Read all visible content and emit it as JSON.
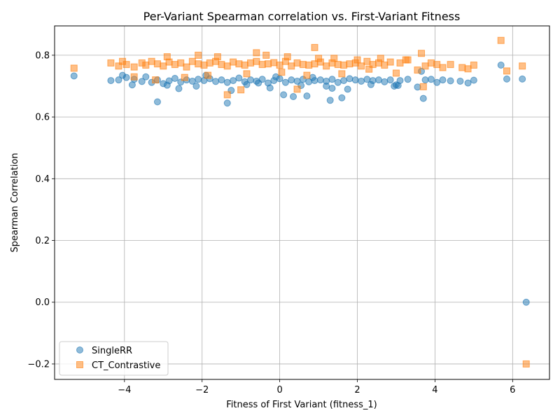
{
  "chart_data": {
    "type": "scatter",
    "title": "Per-Variant Spearman correlation vs. First-Variant Fitness",
    "xlabel": "Fitness of First Variant (fitness_1)",
    "ylabel": "Spearman Correlation",
    "xlim": [
      -5.8,
      6.95
    ],
    "ylim": [
      -0.25,
      0.895
    ],
    "xticks": [
      -4,
      -2,
      0,
      2,
      4,
      6
    ],
    "xtick_labels": [
      "−4",
      "−2",
      "0",
      "2",
      "4",
      "6"
    ],
    "yticks": [
      -0.2,
      0.0,
      0.2,
      0.4,
      0.6,
      0.8
    ],
    "ytick_labels": [
      "−0.2",
      "0.0",
      "0.2",
      "0.4",
      "0.6",
      "0.8"
    ],
    "grid": true,
    "legend_position": "lower-left",
    "colors": {
      "SingleRR": "#1f77b4",
      "CT_Contrastive": "#ff7f0e"
    },
    "series": [
      {
        "name": "SingleRR",
        "marker": "circle",
        "x": [
          -5.3,
          -4.35,
          -4.15,
          -4.05,
          -3.95,
          -3.75,
          -3.55,
          -3.45,
          -3.3,
          -3.15,
          -3.0,
          -2.85,
          -2.7,
          -2.55,
          -2.4,
          -2.25,
          -2.1,
          -1.95,
          -1.8,
          -1.65,
          -1.5,
          -1.35,
          -1.2,
          -1.05,
          -0.9,
          -0.75,
          -0.6,
          -0.45,
          -0.3,
          -0.15,
          0.0,
          0.15,
          0.3,
          0.45,
          0.6,
          0.75,
          0.9,
          1.05,
          1.2,
          1.35,
          1.5,
          1.65,
          1.8,
          1.95,
          2.1,
          2.25,
          2.4,
          2.55,
          2.7,
          2.85,
          3.0,
          3.1,
          3.3,
          3.55,
          3.65,
          3.75,
          3.9,
          4.05,
          4.2,
          4.4,
          4.65,
          4.85,
          5.0,
          5.7,
          5.85,
          6.25,
          6.35,
          -3.15,
          -1.35,
          0.7,
          1.3,
          1.6,
          3.7,
          -2.9,
          -2.6,
          -2.15,
          -1.25,
          -0.85,
          -0.25,
          0.1,
          0.35,
          0.55,
          1.35,
          1.75,
          2.35,
          2.95,
          3.05,
          -3.8,
          -0.55,
          1.2,
          -1.9,
          -0.1,
          0.85
        ],
        "y": [
          0.733,
          0.718,
          0.72,
          0.735,
          0.728,
          0.722,
          0.715,
          0.73,
          0.712,
          0.72,
          0.708,
          0.717,
          0.725,
          0.713,
          0.72,
          0.716,
          0.722,
          0.718,
          0.724,
          0.715,
          0.72,
          0.712,
          0.718,
          0.726,
          0.714,
          0.72,
          0.716,
          0.722,
          0.71,
          0.718,
          0.724,
          0.712,
          0.72,
          0.716,
          0.722,
          0.714,
          0.718,
          0.72,
          0.716,
          0.722,
          0.712,
          0.718,
          0.724,
          0.72,
          0.716,
          0.722,
          0.718,
          0.72,
          0.714,
          0.72,
          0.704,
          0.718,
          0.722,
          0.697,
          0.748,
          0.72,
          0.722,
          0.712,
          0.72,
          0.717,
          0.716,
          0.71,
          0.719,
          0.768,
          0.723,
          0.723,
          0.0,
          0.649,
          0.645,
          0.668,
          0.654,
          0.662,
          0.66,
          0.703,
          0.692,
          0.7,
          0.686,
          0.705,
          0.694,
          0.672,
          0.666,
          0.702,
          0.693,
          0.69,
          0.705,
          0.7,
          0.702,
          0.704,
          0.71,
          0.7,
          0.735,
          0.73,
          0.728
        ]
      },
      {
        "name": "CT_Contrastive",
        "marker": "square",
        "x": [
          -5.3,
          -4.35,
          -4.15,
          -4.05,
          -3.95,
          -3.75,
          -3.55,
          -3.45,
          -3.3,
          -3.15,
          -3.0,
          -2.85,
          -2.7,
          -2.55,
          -2.4,
          -2.25,
          -2.1,
          -1.95,
          -1.8,
          -1.65,
          -1.5,
          -1.35,
          -1.2,
          -1.05,
          -0.9,
          -0.75,
          -0.6,
          -0.45,
          -0.3,
          -0.15,
          0.0,
          0.15,
          0.3,
          0.45,
          0.6,
          0.75,
          0.9,
          1.05,
          1.2,
          1.35,
          1.5,
          1.65,
          1.8,
          1.95,
          2.1,
          2.25,
          2.4,
          2.55,
          2.7,
          2.85,
          3.0,
          3.1,
          3.3,
          3.55,
          3.65,
          3.75,
          3.9,
          4.05,
          4.2,
          4.4,
          4.7,
          4.85,
          5.0,
          5.7,
          5.85,
          6.25,
          6.35,
          -3.2,
          -1.35,
          -1.0,
          0.45,
          0.9,
          3.7,
          -2.9,
          -2.1,
          -1.6,
          -0.6,
          -0.35,
          0.2,
          1.0,
          1.4,
          2.0,
          2.6,
          3.25,
          -3.75,
          -2.45,
          -1.85,
          -0.85,
          0.05,
          0.7,
          1.6,
          2.3
        ],
        "y": [
          0.758,
          0.775,
          0.765,
          0.78,
          0.77,
          0.762,
          0.775,
          0.768,
          0.78,
          0.772,
          0.765,
          0.778,
          0.77,
          0.775,
          0.762,
          0.78,
          0.772,
          0.768,
          0.775,
          0.78,
          0.77,
          0.765,
          0.778,
          0.772,
          0.768,
          0.775,
          0.78,
          0.77,
          0.772,
          0.776,
          0.768,
          0.78,
          0.765,
          0.775,
          0.77,
          0.768,
          0.772,
          0.778,
          0.765,
          0.775,
          0.77,
          0.768,
          0.772,
          0.775,
          0.765,
          0.78,
          0.77,
          0.775,
          0.768,
          0.778,
          0.742,
          0.775,
          0.785,
          0.752,
          0.806,
          0.765,
          0.775,
          0.77,
          0.76,
          0.77,
          0.76,
          0.756,
          0.768,
          0.848,
          0.749,
          0.765,
          -0.2,
          0.72,
          0.672,
          0.688,
          0.69,
          0.825,
          0.698,
          0.795,
          0.8,
          0.795,
          0.808,
          0.8,
          0.795,
          0.79,
          0.79,
          0.785,
          0.79,
          0.785,
          0.73,
          0.728,
          0.735,
          0.74,
          0.745,
          0.735,
          0.74,
          0.755
        ]
      }
    ]
  }
}
